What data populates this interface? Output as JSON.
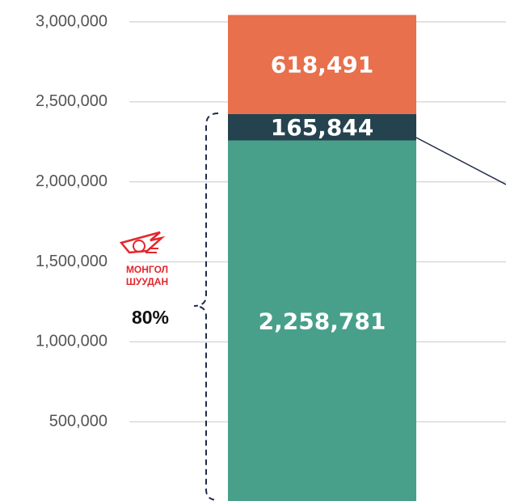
{
  "chart_data": {
    "type": "bar",
    "stacked": true,
    "categories": [
      null
    ],
    "series": [
      {
        "color": "#48a08b",
        "values": [
          2258781
        ],
        "value_labels": [
          "2,258,781"
        ]
      },
      {
        "color": "#25434f",
        "values": [
          165844
        ],
        "value_labels": [
          "165,844"
        ]
      },
      {
        "color": "#e8704d",
        "values": [
          618491
        ],
        "value_labels": [
          "618,491"
        ]
      }
    ],
    "ylim": [
      0,
      3000000
    ],
    "yticks": [
      {
        "value": 500000,
        "label": "500,000"
      },
      {
        "value": 1000000,
        "label": "1,000,000"
      },
      {
        "value": 1500000,
        "label": "1,500,000"
      },
      {
        "value": 2000000,
        "label": "2,000,000"
      },
      {
        "value": 2500000,
        "label": "2,500,000"
      },
      {
        "value": 3000000,
        "label": "3,000,000"
      }
    ],
    "grid": true,
    "annotation": "80%",
    "logo_text": [
      "МОНГОЛ",
      "ШУУДАН"
    ]
  }
}
